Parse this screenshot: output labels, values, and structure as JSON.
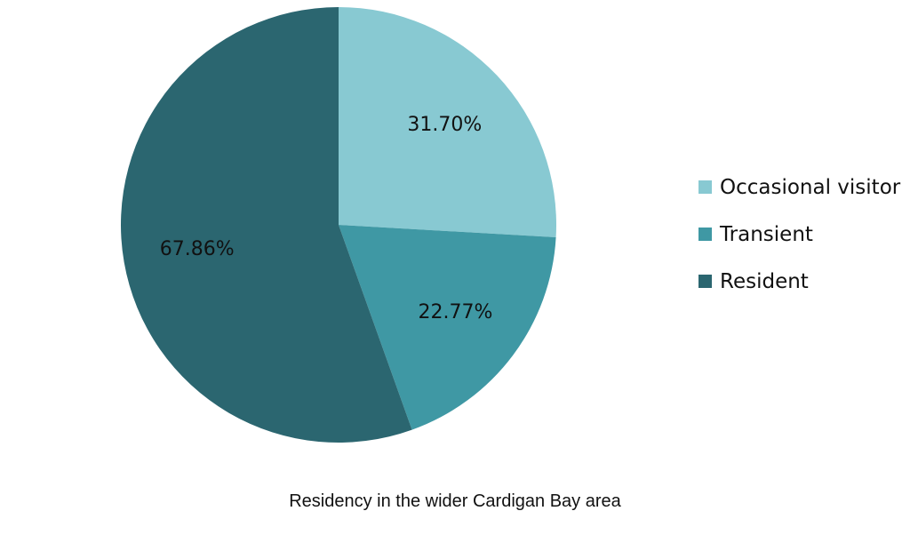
{
  "chart_data": {
    "type": "pie",
    "title": "Residency in the wider Cardigan Bay area",
    "slices": [
      {
        "name": "Occasional visitor",
        "label": "31.70%",
        "value": 31.7,
        "color": "#88c9d2"
      },
      {
        "name": "Transient",
        "label": "22.77%",
        "value": 22.77,
        "color": "#3f98a4"
      },
      {
        "name": "Resident",
        "label": "67.86%",
        "value": 67.86,
        "color": "#2b6670"
      }
    ],
    "legend_position": "right",
    "start_angle": "12 o'clock",
    "direction": "clockwise"
  }
}
